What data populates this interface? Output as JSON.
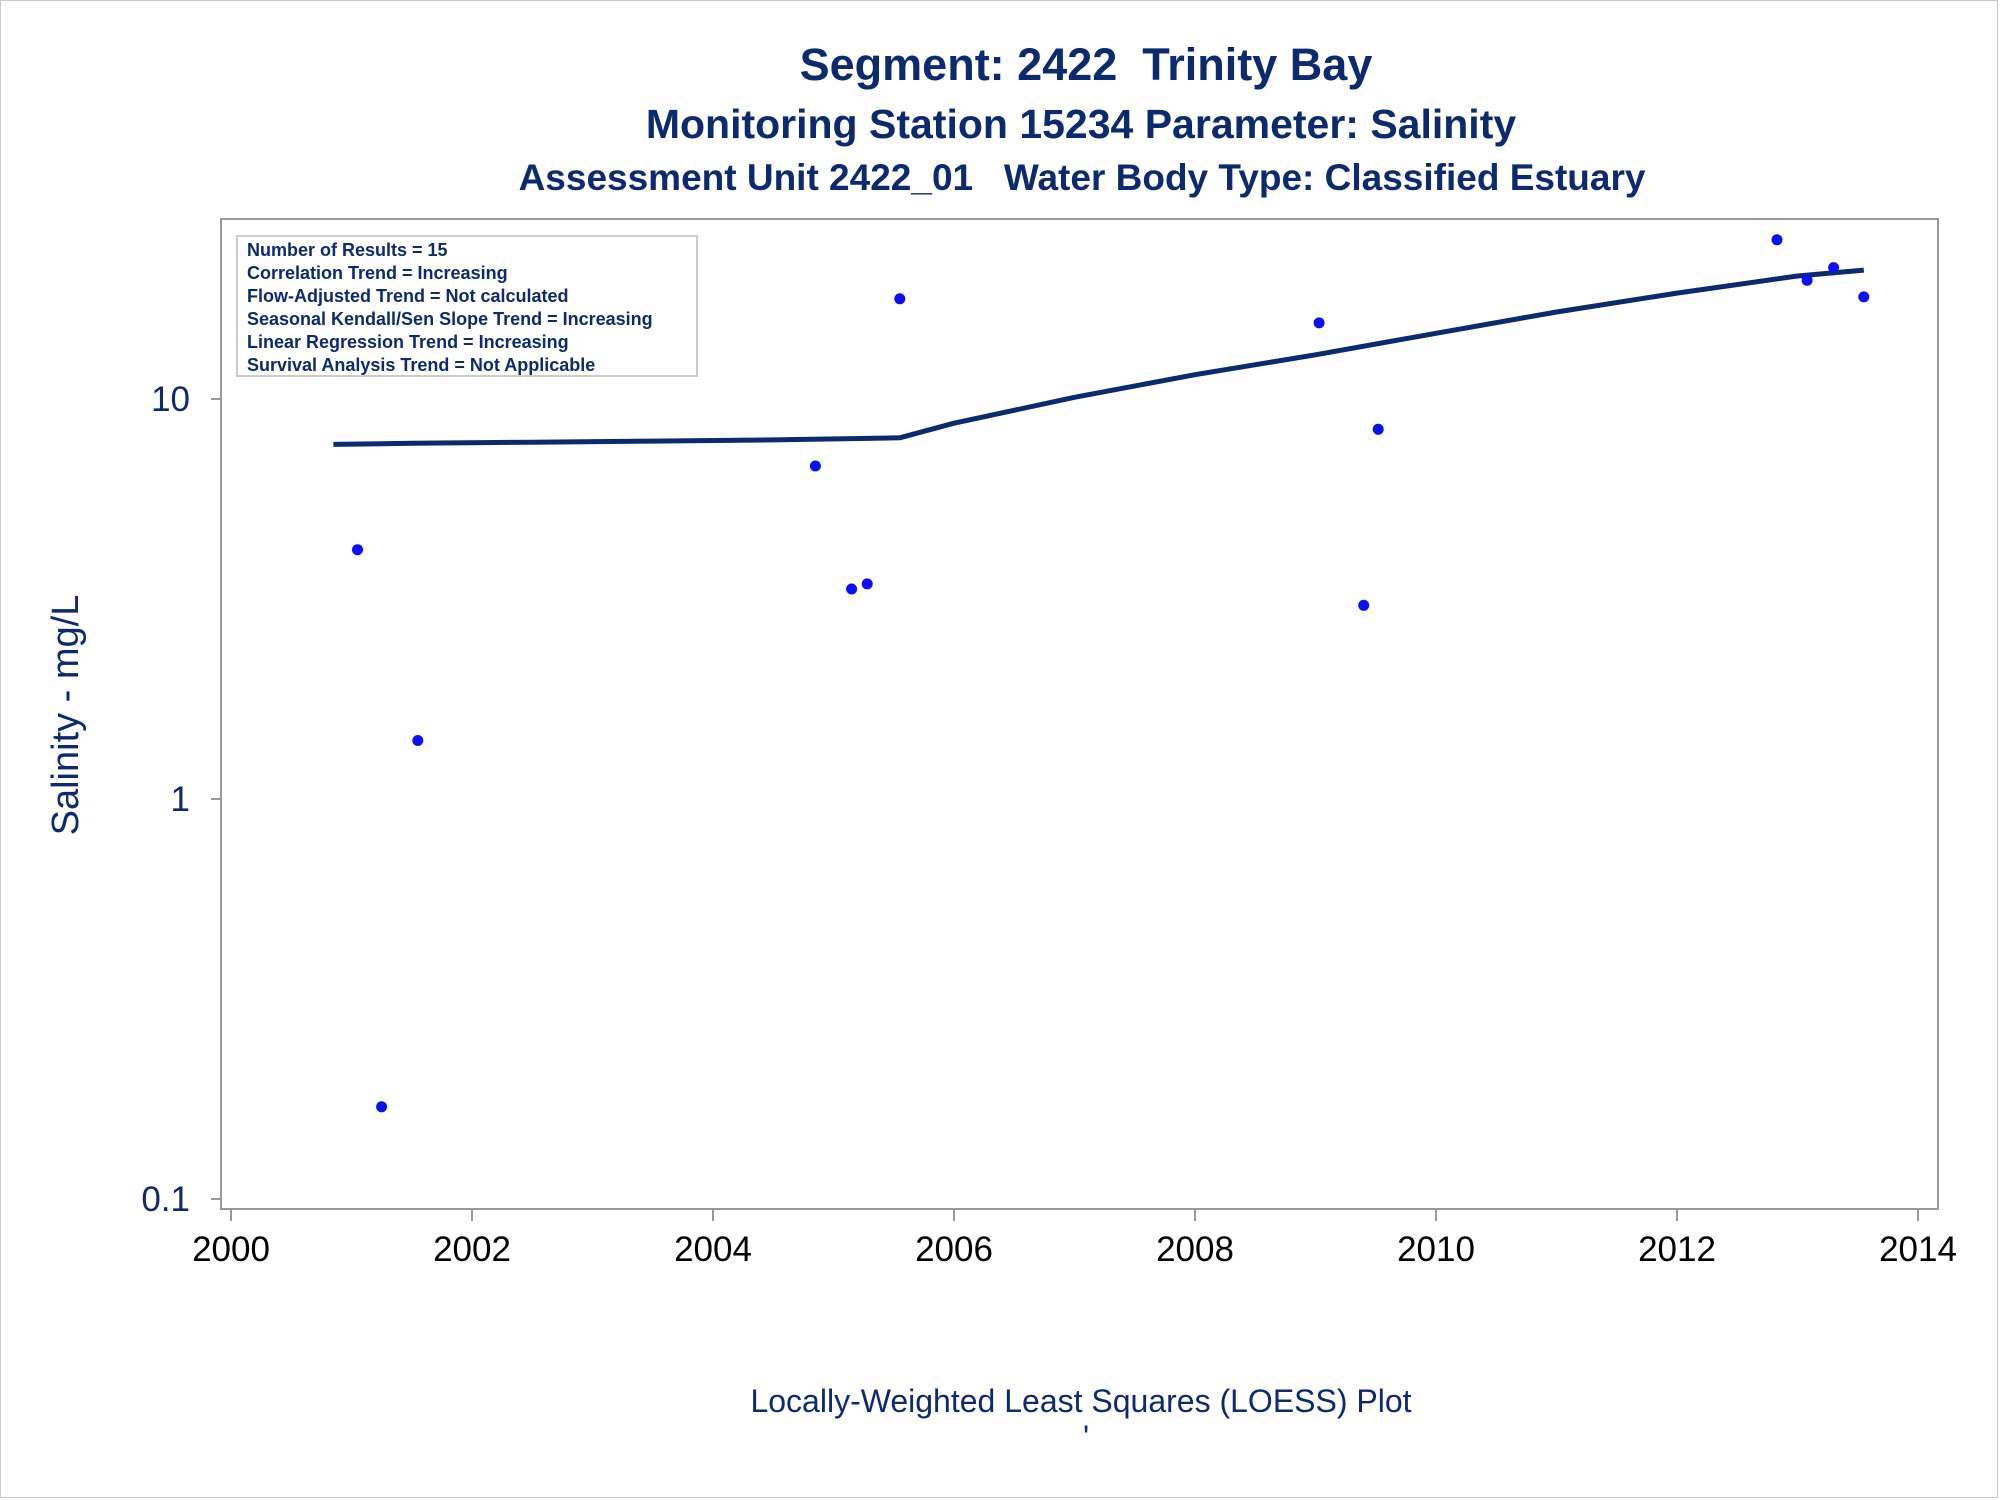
{
  "colors": {
    "title": "#0d2a6e",
    "line": "#0d2a6e",
    "points": "#0a10f2",
    "frame": "#999999"
  },
  "chart_data": {
    "type": "scatter",
    "title": "Segment: 2422  Trinity Bay",
    "subtitle": "Monitoring Station 15234 Parameter: Salinity",
    "subtitle2": "Assessment Unit 2422_01   Water Body Type: Classified Estuary",
    "xlabel": "",
    "ylabel": "Salinity - mg/L",
    "footnote": "Locally-Weighted Least Squares (LOESS) Plot",
    "footnote2": "'",
    "x_scale": "linear",
    "y_scale": "log",
    "xlim": [
      2000,
      2014
    ],
    "ylim": [
      0.1,
      26
    ],
    "x_ticks": [
      "2000",
      "2002",
      "2004",
      "2006",
      "2008",
      "2010",
      "2012",
      "2014"
    ],
    "x_tick_values": [
      2000,
      2002,
      2004,
      2006,
      2008,
      2010,
      2012,
      2014
    ],
    "y_ticks": [
      "0.1",
      "1",
      "10"
    ],
    "y_tick_values": [
      0.1,
      1,
      10
    ],
    "grid": false,
    "inset_text": [
      "Number of Results = 15",
      "Correlation Trend = Increasing",
      "Flow-Adjusted Trend = Not calculated",
      "Seasonal Kendall/Sen Slope Trend = Increasing",
      "Linear Regression Trend = Increasing",
      "Survival Analysis Trend = Not Applicable"
    ],
    "inset_placement": "top-left",
    "series": [
      {
        "type": "scatter",
        "points": [
          {
            "x": 2000.85,
            "y": 24.5
          },
          {
            "x": 2001.05,
            "y": 4.2
          },
          {
            "x": 2001.25,
            "y": 0.17
          },
          {
            "x": 2001.55,
            "y": 1.4
          },
          {
            "x": 2004.85,
            "y": 6.8
          },
          {
            "x": 2005.15,
            "y": 3.35
          },
          {
            "x": 2005.28,
            "y": 3.45
          },
          {
            "x": 2005.55,
            "y": 17.8
          },
          {
            "x": 2009.03,
            "y": 15.5
          },
          {
            "x": 2009.4,
            "y": 3.05
          },
          {
            "x": 2009.52,
            "y": 8.4
          },
          {
            "x": 2012.83,
            "y": 25.0
          },
          {
            "x": 2013.08,
            "y": 19.8
          },
          {
            "x": 2013.3,
            "y": 21.3
          },
          {
            "x": 2013.55,
            "y": 18.0
          }
        ]
      },
      {
        "type": "line",
        "points": [
          {
            "x": 2000.85,
            "y": 7.7
          },
          {
            "x": 2001.5,
            "y": 7.75
          },
          {
            "x": 2002.5,
            "y": 7.8
          },
          {
            "x": 2003.5,
            "y": 7.85
          },
          {
            "x": 2004.5,
            "y": 7.9
          },
          {
            "x": 2005.55,
            "y": 8.0
          },
          {
            "x": 2006.0,
            "y": 8.7
          },
          {
            "x": 2007.0,
            "y": 10.1
          },
          {
            "x": 2008.0,
            "y": 11.5
          },
          {
            "x": 2009.0,
            "y": 12.9
          },
          {
            "x": 2010.0,
            "y": 14.6
          },
          {
            "x": 2011.0,
            "y": 16.5
          },
          {
            "x": 2012.0,
            "y": 18.4
          },
          {
            "x": 2013.0,
            "y": 20.3
          },
          {
            "x": 2013.55,
            "y": 21.0
          }
        ]
      }
    ]
  }
}
